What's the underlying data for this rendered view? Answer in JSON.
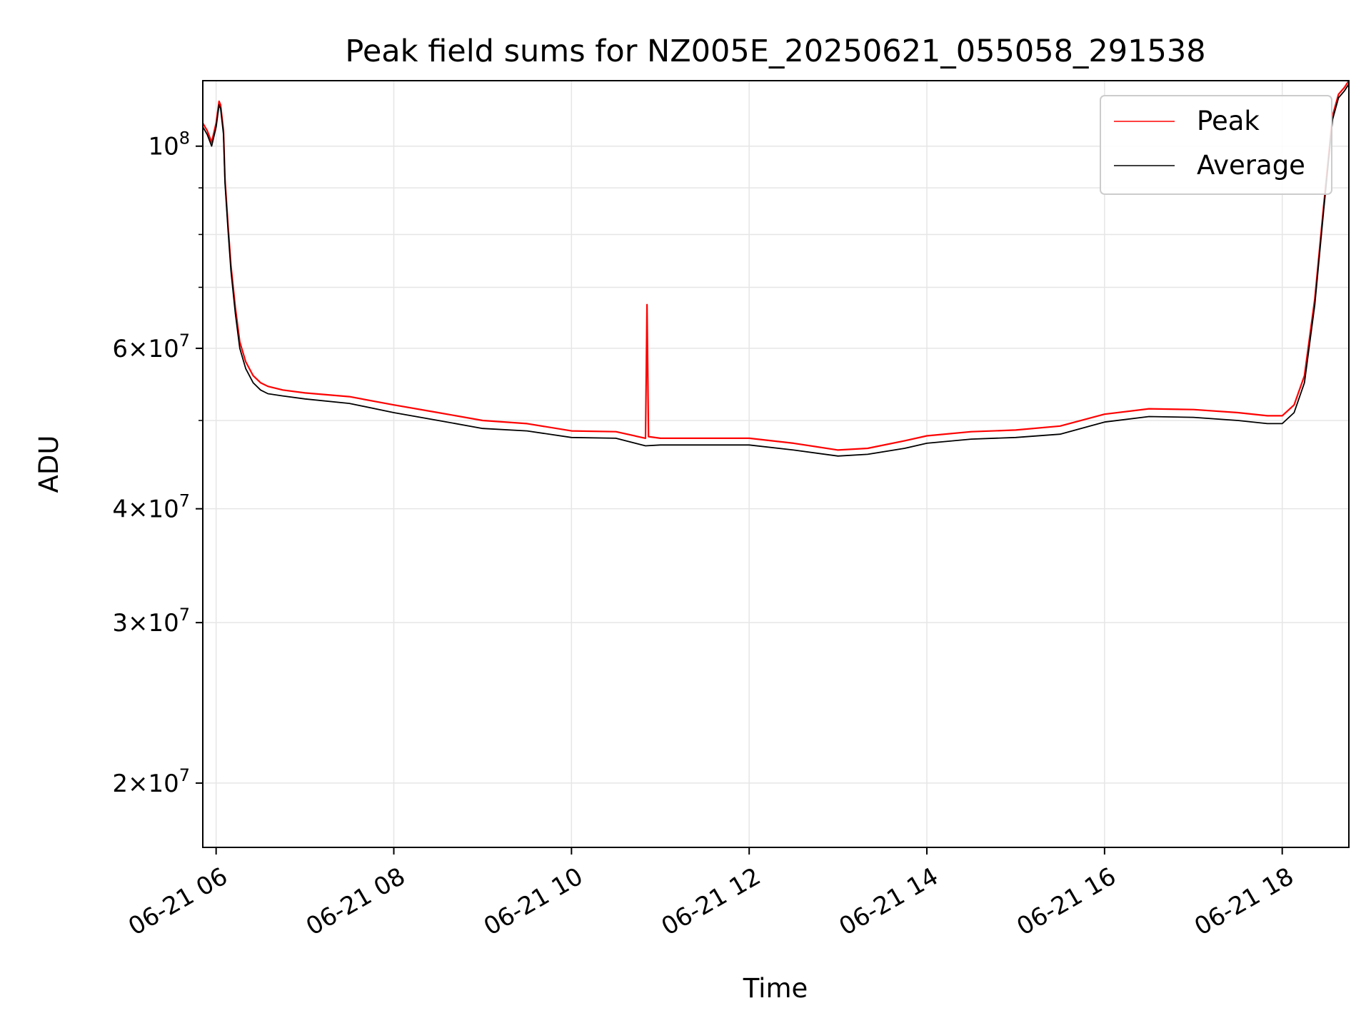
{
  "chart_data": {
    "type": "line",
    "title": "Peak field sums for NZ005E_20250621_055058_291538",
    "xlabel": "Time",
    "ylabel": "ADU",
    "y_scale": "log",
    "ylim": [
      17000000,
      118000000
    ],
    "xlim": [
      "2025-06-21 05:51",
      "2025-06-21 18:45"
    ],
    "x_ticks": [
      "2025-06-21 06:00",
      "2025-06-21 08:00",
      "2025-06-21 10:00",
      "2025-06-21 12:00",
      "2025-06-21 14:00",
      "2025-06-21 16:00",
      "2025-06-21 18:00"
    ],
    "x_tick_labels": [
      "06-21 06",
      "06-21 08",
      "06-21 10",
      "06-21 12",
      "06-21 14",
      "06-21 16",
      "06-21 18"
    ],
    "y_ticks": [
      20000000,
      30000000,
      40000000,
      60000000,
      100000000
    ],
    "y_tick_labels": [
      {
        "base": "2",
        "exp": "7"
      },
      {
        "base": "3",
        "exp": "7"
      },
      {
        "base": "4",
        "exp": "7"
      },
      {
        "base": "6",
        "exp": "7"
      },
      {
        "base": "",
        "exp": "8"
      }
    ],
    "y_minor_ticks": [
      50000000,
      70000000,
      80000000,
      90000000
    ],
    "grid": true,
    "legend_position": "upper right",
    "series": [
      {
        "name": "Peak",
        "color": "#ff0000",
        "x": [
          "2025-06-21 05:51",
          "2025-06-21 05:54",
          "2025-06-21 05:57",
          "2025-06-21 06:00",
          "2025-06-21 06:02",
          "2025-06-21 06:03",
          "2025-06-21 06:05",
          "2025-06-21 06:06",
          "2025-06-21 06:08",
          "2025-06-21 06:10",
          "2025-06-21 06:13",
          "2025-06-21 06:16",
          "2025-06-21 06:20",
          "2025-06-21 06:25",
          "2025-06-21 06:30",
          "2025-06-21 06:35",
          "2025-06-21 06:45",
          "2025-06-21 07:00",
          "2025-06-21 07:30",
          "2025-06-21 08:00",
          "2025-06-21 08:30",
          "2025-06-21 09:00",
          "2025-06-21 09:30",
          "2025-06-21 10:00",
          "2025-06-21 10:30",
          "2025-06-21 10:50",
          "2025-06-21 10:51",
          "2025-06-21 10:52",
          "2025-06-21 11:00",
          "2025-06-21 11:30",
          "2025-06-21 12:00",
          "2025-06-21 12:30",
          "2025-06-21 13:00",
          "2025-06-21 13:20",
          "2025-06-21 13:45",
          "2025-06-21 14:00",
          "2025-06-21 14:30",
          "2025-06-21 15:00",
          "2025-06-21 15:30",
          "2025-06-21 16:00",
          "2025-06-21 16:30",
          "2025-06-21 17:00",
          "2025-06-21 17:30",
          "2025-06-21 17:50",
          "2025-06-21 18:00",
          "2025-06-21 18:08",
          "2025-06-21 18:15",
          "2025-06-21 18:22",
          "2025-06-21 18:28",
          "2025-06-21 18:34",
          "2025-06-21 18:38",
          "2025-06-21 18:42",
          "2025-06-21 18:45"
        ],
        "y": [
          106000000,
          104000000,
          101000000,
          106000000,
          112000000,
          111000000,
          104000000,
          92000000,
          82000000,
          74000000,
          66500000,
          61000000,
          58000000,
          56000000,
          55000000,
          54500000,
          54000000,
          53600000,
          53100000,
          52000000,
          51000000,
          50000000,
          49600000,
          48700000,
          48600000,
          47800000,
          67000000,
          48000000,
          47800000,
          47800000,
          47800000,
          47200000,
          46400000,
          46600000,
          47500000,
          48100000,
          48600000,
          48800000,
          49300000,
          50800000,
          51500000,
          51400000,
          51000000,
          50600000,
          50600000,
          52000000,
          56000000,
          68000000,
          86000000,
          108000000,
          114000000,
          116000000,
          118000000
        ]
      },
      {
        "name": "Average",
        "color": "#000000",
        "x": [
          "2025-06-21 05:51",
          "2025-06-21 05:54",
          "2025-06-21 05:57",
          "2025-06-21 06:00",
          "2025-06-21 06:02",
          "2025-06-21 06:03",
          "2025-06-21 06:05",
          "2025-06-21 06:06",
          "2025-06-21 06:08",
          "2025-06-21 06:10",
          "2025-06-21 06:13",
          "2025-06-21 06:16",
          "2025-06-21 06:20",
          "2025-06-21 06:25",
          "2025-06-21 06:30",
          "2025-06-21 06:35",
          "2025-06-21 06:45",
          "2025-06-21 07:00",
          "2025-06-21 07:30",
          "2025-06-21 08:00",
          "2025-06-21 08:30",
          "2025-06-21 09:00",
          "2025-06-21 09:30",
          "2025-06-21 10:00",
          "2025-06-21 10:30",
          "2025-06-21 10:50",
          "2025-06-21 11:00",
          "2025-06-21 11:30",
          "2025-06-21 12:00",
          "2025-06-21 12:30",
          "2025-06-21 13:00",
          "2025-06-21 13:20",
          "2025-06-21 13:45",
          "2025-06-21 14:00",
          "2025-06-21 14:30",
          "2025-06-21 15:00",
          "2025-06-21 15:30",
          "2025-06-21 16:00",
          "2025-06-21 16:30",
          "2025-06-21 17:00",
          "2025-06-21 17:30",
          "2025-06-21 17:50",
          "2025-06-21 18:00",
          "2025-06-21 18:08",
          "2025-06-21 18:15",
          "2025-06-21 18:22",
          "2025-06-21 18:28",
          "2025-06-21 18:34",
          "2025-06-21 18:38",
          "2025-06-21 18:42",
          "2025-06-21 18:45"
        ],
        "y": [
          105000000,
          103000000,
          100000000,
          105000000,
          111000000,
          110000000,
          103000000,
          91000000,
          81000000,
          73000000,
          65500000,
          60000000,
          57000000,
          55000000,
          54000000,
          53500000,
          53200000,
          52800000,
          52200000,
          51000000,
          50000000,
          49000000,
          48700000,
          47900000,
          47800000,
          46900000,
          47000000,
          47000000,
          47000000,
          46400000,
          45700000,
          45900000,
          46600000,
          47200000,
          47700000,
          47900000,
          48300000,
          49800000,
          50500000,
          50400000,
          50000000,
          49600000,
          49600000,
          51000000,
          55000000,
          67000000,
          85000000,
          107000000,
          113000000,
          115000000,
          117000000
        ]
      }
    ]
  }
}
